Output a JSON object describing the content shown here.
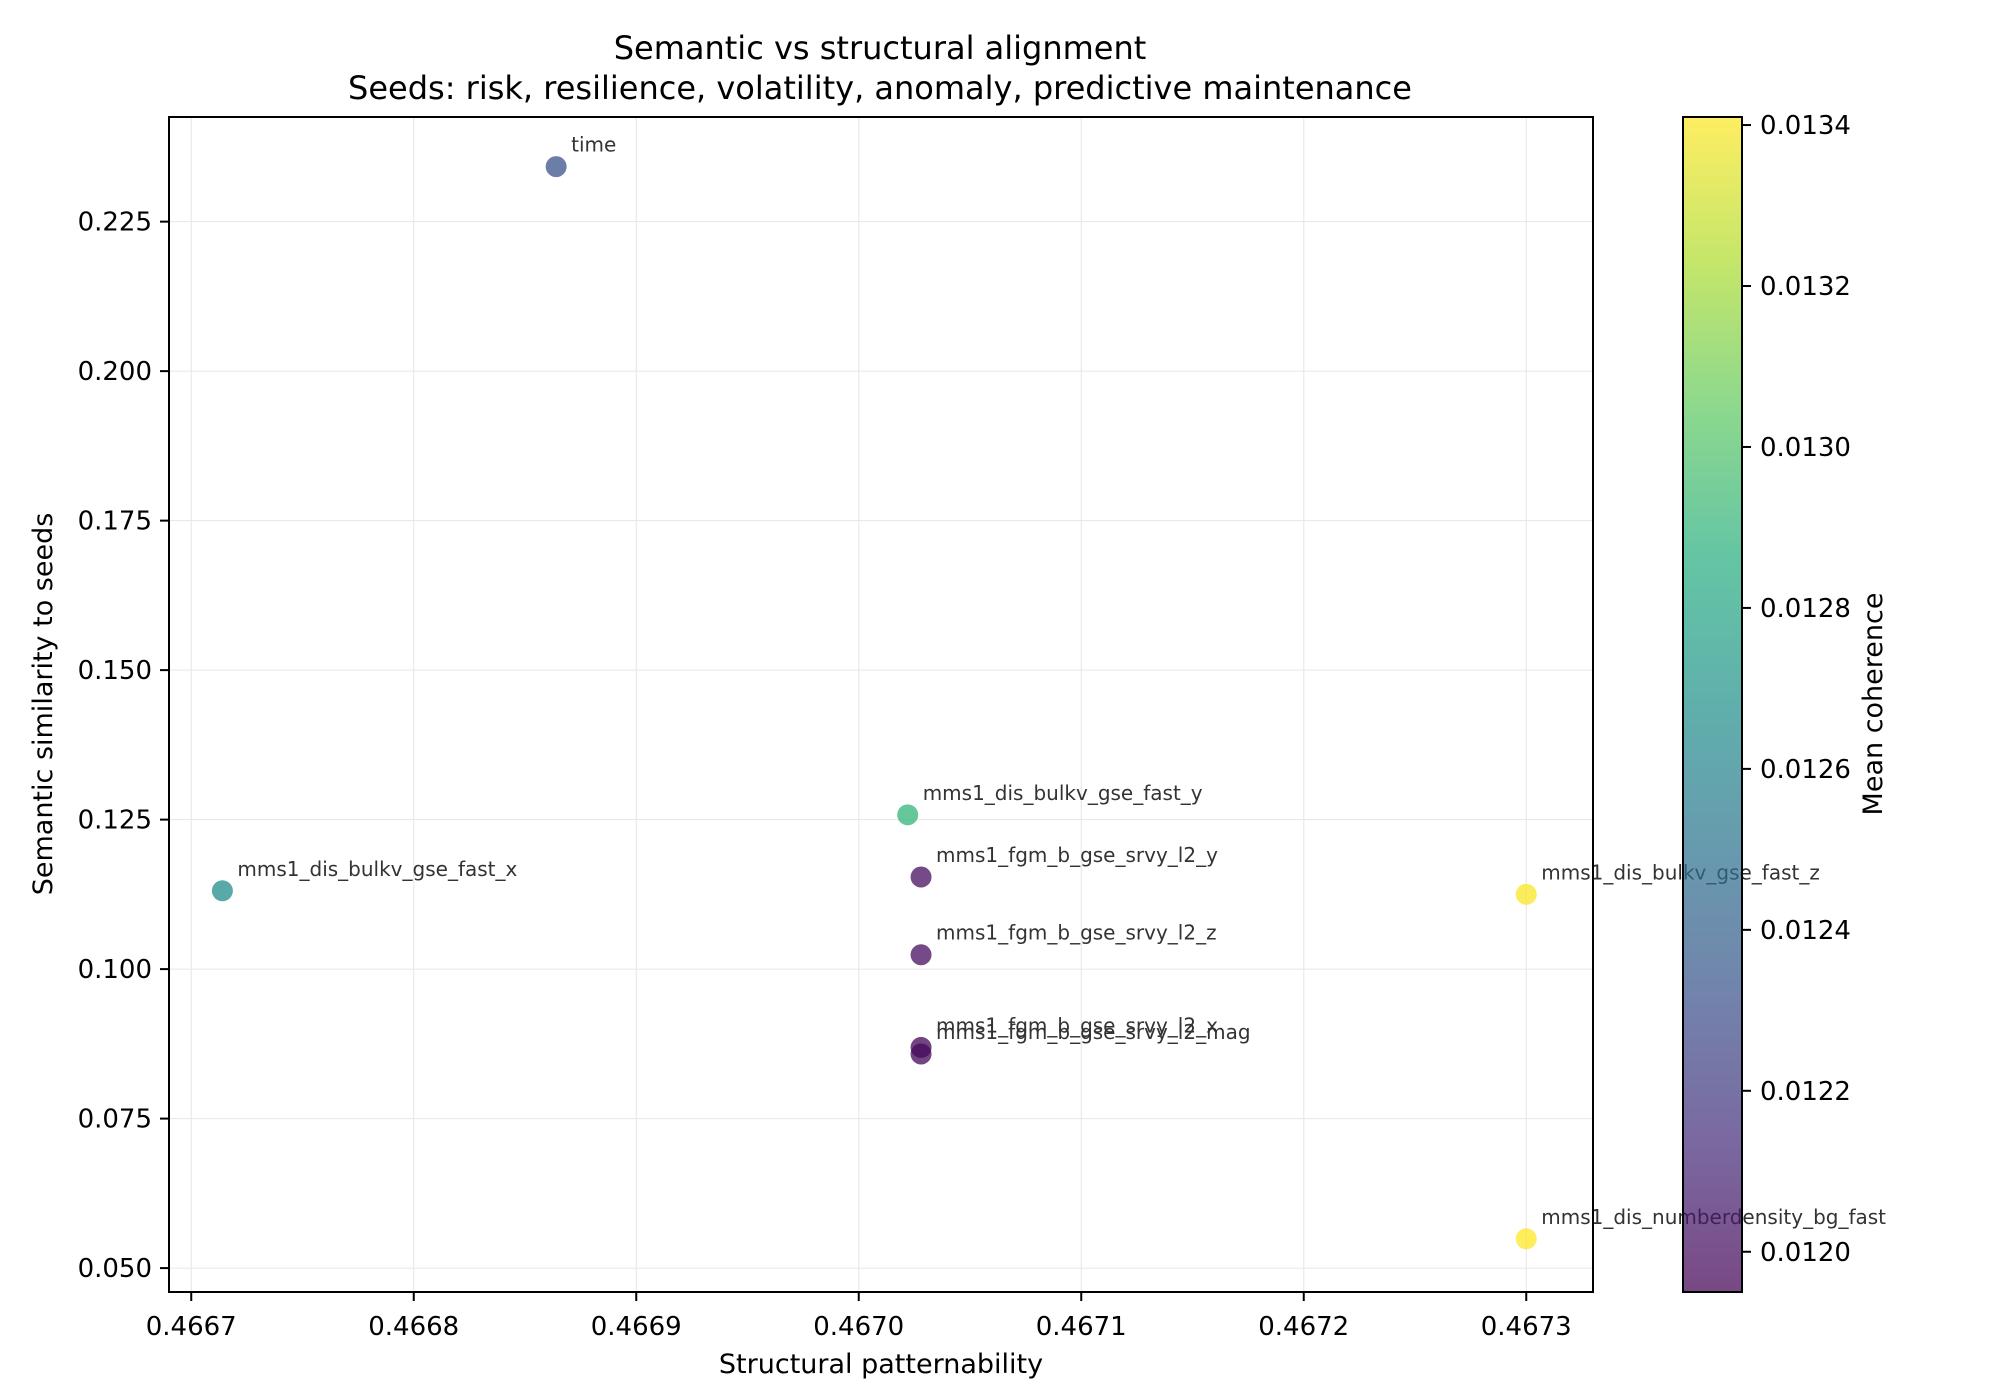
{
  "chart_data": {
    "type": "scatter",
    "title": "Semantic vs structural alignment",
    "subtitle": "Seeds: risk, resilience, volatility, anomaly, predictive maintenance",
    "xlabel": "Structural patternability",
    "ylabel": "Semantic similarity to seeds",
    "colorbar_label": "Mean coherence",
    "xlim": [
      0.46669,
      0.46733
    ],
    "ylim": [
      0.046,
      0.2425
    ],
    "clim": [
      0.01195,
      0.01341
    ],
    "x_ticks": [
      {
        "value": 0.4667,
        "label": "0.4667"
      },
      {
        "value": 0.4668,
        "label": "0.4668"
      },
      {
        "value": 0.4669,
        "label": "0.4669"
      },
      {
        "value": 0.467,
        "label": "0.4670"
      },
      {
        "value": 0.4671,
        "label": "0.4671"
      },
      {
        "value": 0.4672,
        "label": "0.4672"
      },
      {
        "value": 0.4673,
        "label": "0.4673"
      }
    ],
    "y_ticks": [
      {
        "value": 0.05,
        "label": "0.050"
      },
      {
        "value": 0.075,
        "label": "0.075"
      },
      {
        "value": 0.1,
        "label": "0.100"
      },
      {
        "value": 0.125,
        "label": "0.125"
      },
      {
        "value": 0.15,
        "label": "0.150"
      },
      {
        "value": 0.175,
        "label": "0.175"
      },
      {
        "value": 0.2,
        "label": "0.200"
      },
      {
        "value": 0.225,
        "label": "0.225"
      }
    ],
    "colorbar_ticks": [
      {
        "value": 0.012,
        "label": "0.0120"
      },
      {
        "value": 0.0122,
        "label": "0.0122"
      },
      {
        "value": 0.0124,
        "label": "0.0124"
      },
      {
        "value": 0.0126,
        "label": "0.0126"
      },
      {
        "value": 0.0128,
        "label": "0.0128"
      },
      {
        "value": 0.013,
        "label": "0.0130"
      },
      {
        "value": 0.0132,
        "label": "0.0132"
      },
      {
        "value": 0.0134,
        "label": "0.0134"
      }
    ],
    "grid": true,
    "colormap": "viridis",
    "points": [
      {
        "label": "time",
        "x": 0.466864,
        "y": 0.2342,
        "c": 0.01232
      },
      {
        "label": "mms1_dis_bulkv_gse_fast_x",
        "x": 0.466714,
        "y": 0.1131,
        "c": 0.01265
      },
      {
        "label": "mms1_dis_bulkv_gse_fast_y",
        "x": 0.467022,
        "y": 0.1258,
        "c": 0.0129
      },
      {
        "label": "mms1_fgm_b_gse_srvy_l2_y",
        "x": 0.467028,
        "y": 0.1154,
        "c": 0.012
      },
      {
        "label": "mms1_fgm_b_gse_srvy_l2_z",
        "x": 0.467028,
        "y": 0.1024,
        "c": 0.012
      },
      {
        "label": "mms1_fgm_b_gse_srvy_l2_x",
        "x": 0.467028,
        "y": 0.0869,
        "c": 0.01197
      },
      {
        "label": "mms1_fgm_b_gse_srvy_l2_mag",
        "x": 0.467028,
        "y": 0.0858,
        "c": 0.01198
      },
      {
        "label": "mms1_dis_bulkv_gse_fast_z",
        "x": 0.4673,
        "y": 0.1125,
        "c": 0.0134
      },
      {
        "label": "mms1_dis_numberdensity_bg_fast",
        "x": 0.4673,
        "y": 0.0549,
        "c": 0.01341
      }
    ]
  }
}
